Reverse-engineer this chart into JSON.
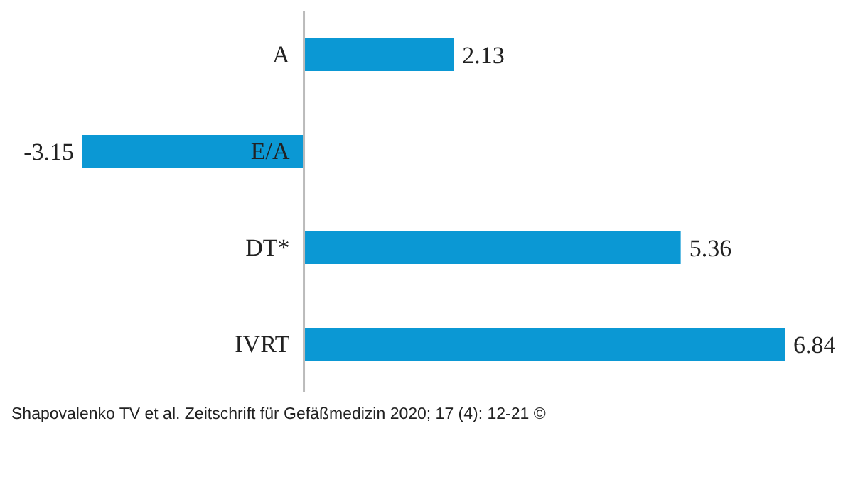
{
  "chart_data": {
    "type": "bar",
    "orientation": "horizontal",
    "categories": [
      "A",
      "E/A",
      "DT*",
      "IVRT"
    ],
    "values": [
      2.13,
      -3.15,
      5.36,
      6.84
    ],
    "color": "#0b98d4",
    "data_labels": true,
    "annotations": [
      "Shapovalenko TV et al. Zeitschrift für Gefäßmedizin 2020; 17 (4): 12-21 ©"
    ]
  }
}
